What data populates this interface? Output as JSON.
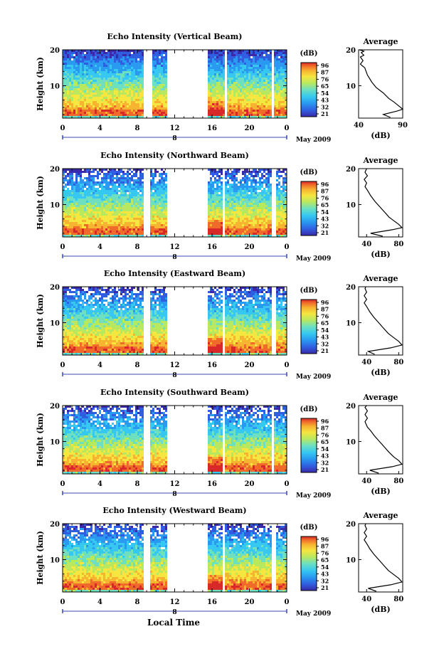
{
  "chart_data": [
    {
      "type": "heatmap",
      "title": "Echo Intensity (Vertical Beam)",
      "ylabel": "Height (km)",
      "x_ticks": [
        "0",
        "4",
        "8",
        "12",
        "16",
        "20",
        "0"
      ],
      "y_ticks": [
        "20",
        "10"
      ],
      "date_marker": "8",
      "date_label": "May 2009",
      "ylim": [
        1,
        20
      ],
      "xlim_hours": [
        0,
        24
      ],
      "data_gaps_hours": [
        [
          8.7,
          9.7
        ],
        [
          11.3,
          15.6
        ],
        [
          17.3,
          17.7
        ],
        [
          22.4,
          22.6
        ]
      ],
      "colorbar": {
        "unit": "(dB)",
        "ticks": [
          "96",
          "87",
          "76",
          "65",
          "54",
          "43",
          "32",
          "21"
        ]
      },
      "average_profile": {
        "title": "Average",
        "xlabel": "(dB)",
        "x_ticks": [
          "40",
          "90"
        ],
        "y_ticks": [
          "20",
          "10"
        ],
        "xlim": [
          40,
          90
        ],
        "ylim": [
          1,
          20
        ],
        "points": [
          [
            76,
            1.2
          ],
          [
            68,
            2.0
          ],
          [
            84,
            3.0
          ],
          [
            90,
            3.5
          ],
          [
            85,
            4.5
          ],
          [
            80,
            5.5
          ],
          [
            74,
            6.5
          ],
          [
            68,
            8
          ],
          [
            60,
            9.5
          ],
          [
            55,
            11
          ],
          [
            50,
            13
          ],
          [
            47,
            15
          ],
          [
            42,
            16
          ],
          [
            45,
            17
          ],
          [
            42,
            18
          ],
          [
            46,
            18.5
          ],
          [
            43,
            19.2
          ],
          [
            46,
            19.6
          ],
          [
            41,
            20
          ]
        ]
      }
    },
    {
      "type": "heatmap",
      "title": "Echo Intensity (Northward Beam)",
      "ylabel": "Height (km)",
      "x_ticks": [
        "0",
        "4",
        "8",
        "12",
        "16",
        "20",
        "0"
      ],
      "y_ticks": [
        "20",
        "10"
      ],
      "date_marker": "8",
      "date_label": "May 2009",
      "ylim": [
        1,
        20
      ],
      "xlim_hours": [
        0,
        24
      ],
      "data_gaps_hours": [
        [
          8.7,
          9.4
        ],
        [
          11.3,
          15.5
        ],
        [
          17.1,
          17.4
        ],
        [
          22.5,
          22.8
        ]
      ],
      "colorbar": {
        "unit": "(dB)",
        "ticks": [
          "96",
          "87",
          "76",
          "65",
          "54",
          "43",
          "32",
          "21"
        ]
      },
      "average_profile": {
        "title": "Average",
        "xlabel": "(dB)",
        "x_ticks": [
          "40",
          "80"
        ],
        "y_ticks": [
          "20",
          "10"
        ],
        "xlim": [
          30,
          85
        ],
        "ylim": [
          1,
          20
        ],
        "points": [
          [
            60,
            1.2
          ],
          [
            45,
            2.0
          ],
          [
            72,
            3.0
          ],
          [
            84,
            3.6
          ],
          [
            80,
            4.5
          ],
          [
            74,
            5.5
          ],
          [
            68,
            6.5
          ],
          [
            62,
            8
          ],
          [
            56,
            9.5
          ],
          [
            50,
            11
          ],
          [
            45,
            12.5
          ],
          [
            41,
            14
          ],
          [
            38,
            15
          ],
          [
            40,
            16
          ],
          [
            37,
            17
          ],
          [
            41,
            18
          ],
          [
            38,
            19
          ],
          [
            40,
            20
          ]
        ]
      }
    },
    {
      "type": "heatmap",
      "title": "Echo Intensity (Eastward Beam)",
      "ylabel": "Height (km)",
      "x_ticks": [
        "0",
        "4",
        "8",
        "12",
        "16",
        "20",
        "0"
      ],
      "y_ticks": [
        "20",
        "10"
      ],
      "date_marker": "8",
      "date_label": "May 2009",
      "ylim": [
        1,
        20
      ],
      "xlim_hours": [
        0,
        24
      ],
      "data_gaps_hours": [
        [
          8.7,
          9.4
        ],
        [
          11.3,
          15.5
        ],
        [
          17.1,
          17.4
        ],
        [
          22.5,
          22.8
        ]
      ],
      "colorbar": {
        "unit": "(dB)",
        "ticks": [
          "96",
          "87",
          "76",
          "65",
          "54",
          "43",
          "32",
          "21"
        ]
      },
      "average_profile": {
        "title": "Average",
        "xlabel": "(dB)",
        "x_ticks": [
          "40",
          "80"
        ],
        "y_ticks": [
          "20",
          "10"
        ],
        "xlim": [
          30,
          85
        ],
        "ylim": [
          1,
          20
        ],
        "points": [
          [
            50,
            1.2
          ],
          [
            42,
            2.0
          ],
          [
            70,
            3.0
          ],
          [
            84,
            3.8
          ],
          [
            80,
            4.8
          ],
          [
            74,
            5.8
          ],
          [
            67,
            7
          ],
          [
            61,
            8.5
          ],
          [
            55,
            10
          ],
          [
            49,
            11.5
          ],
          [
            44,
            13
          ],
          [
            40,
            14.5
          ],
          [
            37,
            15.5
          ],
          [
            40,
            16.5
          ],
          [
            37,
            17.5
          ],
          [
            40,
            18.5
          ],
          [
            38,
            19.5
          ],
          [
            39,
            20
          ]
        ]
      }
    },
    {
      "type": "heatmap",
      "title": "Echo Intensity (Southward Beam)",
      "ylabel": "Height (km)",
      "x_ticks": [
        "0",
        "4",
        "8",
        "12",
        "16",
        "20",
        "0"
      ],
      "y_ticks": [
        "20",
        "10"
      ],
      "date_marker": "8",
      "date_label": "May 2009",
      "ylim": [
        1,
        20
      ],
      "xlim_hours": [
        0,
        24
      ],
      "data_gaps_hours": [
        [
          8.7,
          9.4
        ],
        [
          11.3,
          15.5
        ],
        [
          17.1,
          17.4
        ],
        [
          22.3,
          22.6
        ]
      ],
      "colorbar": {
        "unit": "(dB)",
        "ticks": [
          "96",
          "87",
          "76",
          "65",
          "54",
          "43",
          "32",
          "21"
        ]
      },
      "average_profile": {
        "title": "Average",
        "xlabel": "(dB)",
        "x_ticks": [
          "40",
          "80"
        ],
        "y_ticks": [
          "20",
          "10"
        ],
        "xlim": [
          30,
          85
        ],
        "ylim": [
          1,
          20
        ],
        "points": [
          [
            55,
            1.2
          ],
          [
            44,
            2.0
          ],
          [
            72,
            3.0
          ],
          [
            84,
            3.7
          ],
          [
            80,
            4.7
          ],
          [
            74,
            5.7
          ],
          [
            68,
            7
          ],
          [
            62,
            8.5
          ],
          [
            56,
            10
          ],
          [
            50,
            11.5
          ],
          [
            45,
            13
          ],
          [
            41,
            14
          ],
          [
            38,
            15.5
          ],
          [
            41,
            16.5
          ],
          [
            38,
            17.5
          ],
          [
            41,
            18.5
          ],
          [
            38,
            19.5
          ],
          [
            40,
            20
          ]
        ]
      }
    },
    {
      "type": "heatmap",
      "title": "Echo Intensity (Westward Beam)",
      "ylabel": "Height (km)",
      "x_ticks": [
        "0",
        "4",
        "8",
        "12",
        "16",
        "20",
        "0"
      ],
      "y_ticks": [
        "20",
        "10"
      ],
      "date_marker": "8",
      "date_label": "May 2009",
      "ylim": [
        1,
        20
      ],
      "xlim_hours": [
        0,
        24
      ],
      "data_gaps_hours": [
        [
          8.7,
          9.4
        ],
        [
          11.3,
          15.5
        ],
        [
          17.1,
          17.4
        ],
        [
          22.5,
          22.8
        ]
      ],
      "colorbar": {
        "unit": "(dB)",
        "ticks": [
          "96",
          "87",
          "76",
          "65",
          "54",
          "43",
          "32",
          "21"
        ]
      },
      "average_profile": {
        "title": "Average",
        "xlabel": "(dB)",
        "x_ticks": [
          "40",
          "80"
        ],
        "y_ticks": [
          "20",
          "10"
        ],
        "xlim": [
          30,
          85
        ],
        "ylim": [
          1,
          20
        ],
        "points": [
          [
            52,
            1.2
          ],
          [
            42,
            2.0
          ],
          [
            70,
            3.0
          ],
          [
            84,
            3.8
          ],
          [
            80,
            4.8
          ],
          [
            74,
            5.8
          ],
          [
            67,
            7
          ],
          [
            61,
            8.5
          ],
          [
            55,
            10
          ],
          [
            49,
            11.5
          ],
          [
            44,
            13
          ],
          [
            40,
            14.5
          ],
          [
            37,
            15.5
          ],
          [
            40,
            16.5
          ],
          [
            37,
            17.5
          ],
          [
            40,
            18.5
          ],
          [
            38,
            19.5
          ],
          [
            39,
            20
          ]
        ]
      }
    }
  ],
  "footer": {
    "xlabel": "Local Time"
  },
  "colors": {
    "colormap": [
      "#3a2aa8",
      "#2f5fe0",
      "#2a9af0",
      "#36c8f0",
      "#6ee0c0",
      "#b8e860",
      "#f5e640",
      "#f7b430",
      "#f06a2a",
      "#d8282a"
    ],
    "axis": "#000000",
    "date_bar": "#3a4ab0",
    "background": "#ffffff"
  }
}
